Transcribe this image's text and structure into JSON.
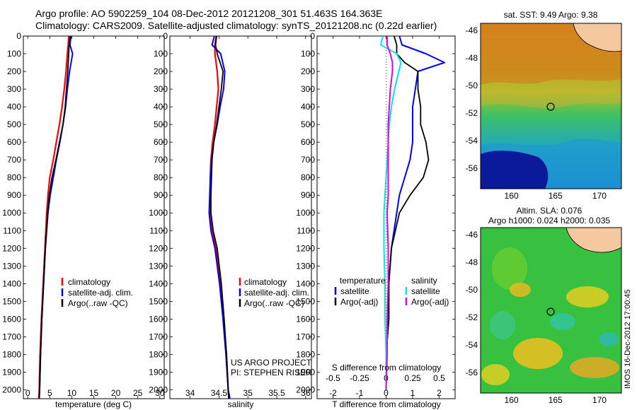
{
  "header": {
    "title_line1": "Argo profile: AO 5902259_104 08-Dec-2012 20121208_301 51.463S 164.363E",
    "title_line2": "Climatology: CARS2009. Satellite-adjusted climatology: synTS_20121208.nc (0.22d earlier)"
  },
  "colors": {
    "climatology": "#ff0000",
    "satellite": "#0000ff",
    "argo": "#000000",
    "salinity_satellite": "#00e5e5",
    "salinity_argo": "#e000e0"
  },
  "chart_data": [
    {
      "type": "line",
      "id": "temperature",
      "xlabel": "temperature (deg C)",
      "ylabel": "",
      "xlim": [
        -1,
        31
      ],
      "ylim": [
        2050,
        0
      ],
      "xticks": [
        0,
        5,
        10,
        15,
        20,
        25,
        30
      ],
      "yticks": [
        0,
        100,
        200,
        300,
        400,
        500,
        600,
        700,
        800,
        900,
        1000,
        1100,
        1200,
        1300,
        1400,
        1500,
        1600,
        1700,
        1800,
        1900,
        2000
      ],
      "legend": [
        "climatology",
        "satellite-adj. clim.",
        "Argo(..raw -QC)"
      ],
      "legend_position": "lower-right",
      "depth": [
        0,
        50,
        100,
        200,
        300,
        400,
        500,
        600,
        700,
        800,
        900,
        1000,
        1200,
        1400,
        1600,
        1800,
        2000,
        2050
      ],
      "series": [
        {
          "name": "climatology",
          "values": [
            9.3,
            9.2,
            9.0,
            8.7,
            8.3,
            7.8,
            7.2,
            6.5,
            5.8,
            5.0,
            4.6,
            4.3,
            3.9,
            3.5,
            3.1,
            2.8,
            2.6,
            2.5
          ]
        },
        {
          "name": "satellite-adj. clim.",
          "values": [
            9.8,
            9.6,
            10.2,
            9.5,
            9.0,
            8.6,
            8.0,
            7.3,
            6.5,
            5.8,
            5.1,
            4.6,
            4.0,
            3.6,
            3.2,
            2.9,
            2.7,
            2.6
          ]
        },
        {
          "name": "Argo(..raw -QC)",
          "values": [
            9.6,
            9.4,
            9.3,
            9.1,
            8.8,
            8.5,
            8.0,
            7.2,
            6.4,
            5.5,
            4.9,
            4.5,
            4.0,
            3.6,
            3.2,
            2.9,
            2.7,
            2.6
          ]
        }
      ]
    },
    {
      "type": "line",
      "id": "salinity",
      "xlabel": "salinity",
      "ylabel": "",
      "xlim": [
        33.65,
        36.1
      ],
      "ylim": [
        2050,
        0
      ],
      "xticks": [
        34,
        34.5,
        35,
        35.5,
        36
      ],
      "legend": [
        "climatology",
        "satellite-adj. clim.",
        "Argo(..raw -QC)"
      ],
      "legend_position": "lower-right",
      "annotations": [
        "US ARGO PROJECT",
        "PI: STEPHEN RISER"
      ],
      "depth": [
        0,
        50,
        100,
        200,
        300,
        400,
        500,
        600,
        700,
        800,
        900,
        1000,
        1100,
        1200,
        1400,
        1600,
        1800,
        2000,
        2050
      ],
      "series": [
        {
          "name": "climatology",
          "values": [
            34.45,
            34.43,
            34.43,
            34.47,
            34.49,
            34.46,
            34.43,
            34.39,
            34.36,
            34.35,
            34.35,
            34.35,
            34.38,
            34.45,
            34.52,
            34.58,
            34.63,
            34.66,
            34.67
          ]
        },
        {
          "name": "satellite-adj. clim.",
          "values": [
            34.42,
            34.38,
            34.53,
            34.6,
            34.58,
            34.52,
            34.47,
            34.41,
            34.37,
            34.35,
            34.34,
            34.33,
            34.36,
            34.43,
            34.51,
            34.57,
            34.62,
            34.66,
            34.69
          ]
        },
        {
          "name": "Argo(..raw -QC)",
          "values": [
            34.46,
            34.44,
            34.47,
            34.57,
            34.54,
            34.5,
            34.46,
            34.41,
            34.38,
            34.37,
            34.36,
            34.36,
            34.4,
            34.47,
            34.54,
            34.59,
            34.63,
            34.66,
            34.67
          ]
        }
      ]
    },
    {
      "type": "line",
      "id": "difference",
      "xlabel_bottom": "T difference from climatology",
      "xlabel_top": "S difference from climatology",
      "xlim": [
        -2.6,
        2.6
      ],
      "ylim": [
        2050,
        0
      ],
      "xticks_T": [
        -2,
        -1,
        0,
        1,
        2
      ],
      "xticks_S": [
        -0.5,
        -0.25,
        0,
        0.25,
        0.5
      ],
      "legend_headers": [
        "temperature",
        "salinity"
      ],
      "legend": [
        "satellite",
        "Argo(-adj)",
        "satellite",
        "Argo(-adj)"
      ],
      "legend_position": "lower-right",
      "depth": [
        0,
        50,
        100,
        150,
        200,
        300,
        400,
        500,
        600,
        700,
        800,
        900,
        1000,
        1200,
        1400,
        1600,
        1800,
        2000
      ],
      "series": [
        {
          "name": "temperature satellite",
          "values": [
            0.5,
            0.6,
            1.5,
            2.2,
            1.2,
            1.1,
            1.0,
            1.0,
            1.0,
            0.9,
            0.7,
            0.5,
            0.4,
            0.2,
            0.1,
            0.1,
            0.0,
            0.0
          ]
        },
        {
          "name": "temperature Argo(-adj)",
          "values": [
            0.3,
            0.4,
            0.4,
            0.7,
            1.2,
            1.2,
            1.3,
            1.3,
            1.5,
            1.6,
            1.4,
            0.9,
            0.5,
            0.2,
            0.1,
            0.1,
            0.0,
            0.0
          ]
        },
        {
          "name": "salinity satellite",
          "values": [
            -0.03,
            -0.05,
            0.1,
            0.14,
            0.12,
            0.08,
            0.05,
            0.03,
            0.02,
            0.01,
            0.0,
            -0.01,
            -0.02,
            -0.02,
            -0.01,
            -0.01,
            0.0,
            0.0
          ]
        },
        {
          "name": "salinity Argo(-adj)",
          "values": [
            0.01,
            0.01,
            0.04,
            0.06,
            0.06,
            0.04,
            0.03,
            0.02,
            0.02,
            0.02,
            0.02,
            0.02,
            0.01,
            0.02,
            0.02,
            0.01,
            0.01,
            0.0
          ]
        }
      ]
    },
    {
      "type": "heatmap",
      "id": "sst-map",
      "title": "sat. SST: 9.49 Argo: 9.38",
      "xlim": [
        156.5,
        172.5
      ],
      "ylim": [
        -57.5,
        -45.5
      ],
      "xticks": [
        160,
        165,
        170
      ],
      "yticks": [
        -46,
        -48,
        -50,
        -52,
        -54,
        -56
      ],
      "marker": [
        164.363,
        -51.463
      ]
    },
    {
      "type": "heatmap",
      "id": "sla-map",
      "title_line1": "Altim. SLA: 0.076",
      "title_line2": "Argo h1000: 0.024 h2000: 0.035",
      "xlim": [
        156.5,
        172.5
      ],
      "ylim": [
        -57.5,
        -45.5
      ],
      "xticks": [
        160,
        165,
        170
      ],
      "yticks": [
        -46,
        -48,
        -50,
        -52,
        -54,
        -56
      ],
      "marker": [
        164.363,
        -51.463
      ]
    }
  ],
  "side_stamp": "IMOS 16-Dec-2012 17:00:45"
}
